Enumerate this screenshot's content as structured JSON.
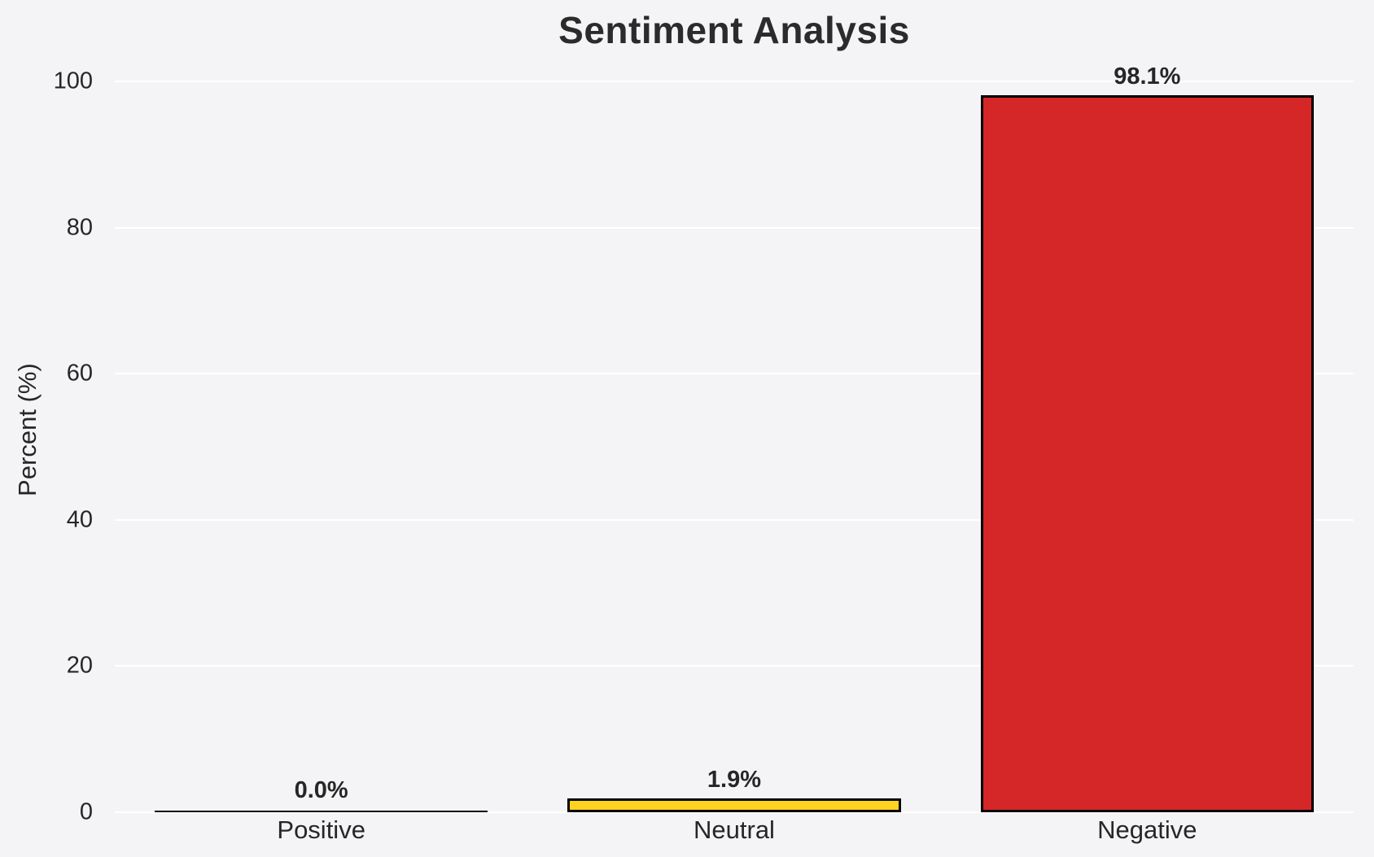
{
  "chart_data": {
    "type": "bar",
    "title": "Sentiment Analysis",
    "categories": [
      "Positive",
      "Neutral",
      "Negative"
    ],
    "values": [
      0.0,
      1.9,
      98.1
    ],
    "value_labels": [
      "0.0%",
      "1.9%",
      "98.1%"
    ],
    "bar_colors": [
      "#f4f4f6",
      "#ffd21f",
      "#d62728"
    ],
    "bar_edge_color": "#000000",
    "xlabel": "",
    "ylabel": "Percent (%)",
    "ylim": [
      0,
      100
    ],
    "yticks": [
      0,
      20,
      40,
      60,
      80,
      100
    ],
    "grid": true,
    "legend": "none",
    "background_color": "#f4f4f6",
    "gridline_color": "#ffffff",
    "text_color": "#262626",
    "title_color": "#2b2b2b"
  }
}
